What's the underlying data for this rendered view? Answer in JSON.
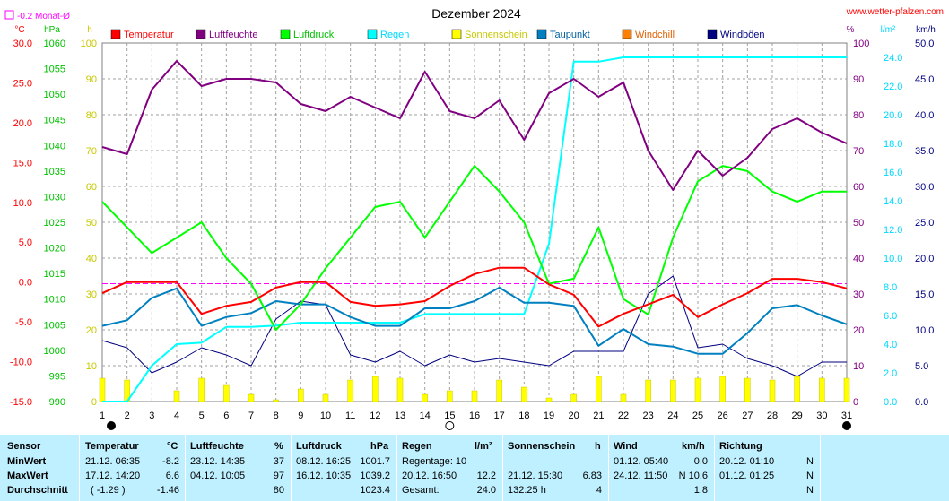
{
  "header": {
    "title": "Dezember 2024",
    "website": "www.wetter-pfalzen.com",
    "monat_label": "-0.2 Monat-Ø",
    "unit_temp": "°C",
    "unit_hpa": "hPa",
    "unit_h": "h",
    "unit_pct": "%",
    "unit_rain": "l/m²",
    "unit_wind": "km/h"
  },
  "colors": {
    "temperatur": "#ff0000",
    "luftfeuchte": "#800080",
    "luftdruck": "#00ff00",
    "regen": "#00ffff",
    "sonnenschein": "#ffff00",
    "taupunkt": "#0080c0",
    "windchill": "#ff8000",
    "windboeen": "#000080"
  },
  "legend": [
    {
      "key": "temperatur",
      "label": "Temperatur",
      "color": "#ff0000",
      "textColor": "#ff0000",
      "x": 124
    },
    {
      "key": "luftfeuchte",
      "label": "Luftfeuchte",
      "color": "#800080",
      "textColor": "#800080",
      "x": 219
    },
    {
      "key": "luftdruck",
      "label": "Luftdruck",
      "color": "#00ff00",
      "textColor": "#00c000",
      "x": 313
    },
    {
      "key": "regen",
      "label": "Regen",
      "color": "#00ffff",
      "textColor": "#00d8ff",
      "x": 410
    },
    {
      "key": "sonnenschein",
      "label": "Sonnenschein",
      "color": "#ffff00",
      "textColor": "#c8c800",
      "x": 504
    },
    {
      "key": "taupunkt",
      "label": "Taupunkt",
      "color": "#0080c0",
      "textColor": "#0060a0",
      "x": 599
    },
    {
      "key": "windchill",
      "label": "Windchill",
      "color": "#ff8000",
      "textColor": "#e06000",
      "x": 694
    },
    {
      "key": "windboeen",
      "label": "Windböen",
      "color": "#000080",
      "textColor": "#000080",
      "x": 789
    }
  ],
  "chart_data": {
    "type": "line",
    "title": "Dezember 2024",
    "x": [
      1,
      2,
      3,
      4,
      5,
      6,
      7,
      8,
      9,
      10,
      11,
      12,
      13,
      14,
      15,
      16,
      17,
      18,
      19,
      20,
      21,
      22,
      23,
      24,
      25,
      26,
      27,
      28,
      29,
      30,
      31
    ],
    "xlim": [
      1,
      31
    ],
    "axes": {
      "temp": {
        "unit": "°C",
        "min": -15,
        "max": 30,
        "ticks": [
          "30.0",
          "25.0",
          "20.0",
          "15.0",
          "10.0",
          "5.0",
          "0.0",
          "-5.0",
          "-10.0",
          "-15.0"
        ]
      },
      "hpa": {
        "unit": "hPa",
        "min": 990,
        "max": 1060,
        "ticks": [
          "1060",
          "1055",
          "1050",
          "1045",
          "1040",
          "1035",
          "1030",
          "1025",
          "1020",
          "1015",
          "1010",
          "1005",
          "1000",
          "995",
          "990"
        ]
      },
      "hours": {
        "unit": "h",
        "min": 0,
        "max": 100,
        "ticks": [
          "100",
          "90",
          "80",
          "70",
          "60",
          "50",
          "40",
          "30",
          "20",
          "10",
          "0"
        ]
      },
      "pct": {
        "unit": "%",
        "min": 0,
        "max": 100,
        "ticks": [
          "100",
          "90",
          "80",
          "70",
          "60",
          "50",
          "40",
          "30",
          "20",
          "10",
          "0"
        ]
      },
      "rain": {
        "unit": "l/m²",
        "min": 0,
        "max": 25,
        "ticks": [
          "24.0",
          "22.0",
          "20.0",
          "18.0",
          "16.0",
          "14.0",
          "12.0",
          "10.0",
          "8.0",
          "6.0",
          "4.0",
          "2.0",
          "0.0"
        ]
      },
      "wind": {
        "unit": "km/h",
        "min": 0,
        "max": 50,
        "ticks": [
          "50.0",
          "45.0",
          "40.0",
          "35.0",
          "30.0",
          "25.0",
          "20.0",
          "15.0",
          "10.0",
          "5.0",
          "0.0"
        ]
      }
    },
    "monthly_mean_temp": -0.2,
    "series": [
      {
        "name": "Temperatur",
        "axis": "temp",
        "color": "#ff0000",
        "values": [
          -1.4,
          0.0,
          0.0,
          0.0,
          -4.0,
          -3.0,
          -2.5,
          -0.7,
          0.0,
          0.0,
          -2.5,
          -3.0,
          -2.8,
          -2.4,
          -0.5,
          1.0,
          1.8,
          1.8,
          -0.3,
          -1.6,
          -5.6,
          -4.0,
          -2.8,
          -1.6,
          -4.4,
          -2.8,
          -1.4,
          0.4,
          0.4,
          0.0,
          -0.8
        ]
      },
      {
        "name": "Luftfeuchte",
        "axis": "pct",
        "color": "#800080",
        "values": [
          71,
          69,
          87,
          95,
          88,
          90,
          90,
          89,
          83,
          81,
          85,
          82,
          79,
          92,
          81,
          79,
          84,
          73,
          86,
          90,
          85,
          89,
          70,
          59,
          70,
          63,
          68,
          76,
          79,
          75,
          72
        ]
      },
      {
        "name": "Luftdruck",
        "axis": "hpa",
        "color": "#00ff00",
        "values": [
          1029,
          1024,
          1019,
          1022,
          1025,
          1018,
          1013,
          1004,
          1009,
          1016,
          1022,
          1028,
          1029,
          1022,
          1029,
          1036,
          1031,
          1025,
          1013,
          1014,
          1024,
          1010,
          1007,
          1022,
          1033,
          1036,
          1035,
          1031,
          1029,
          1031,
          1031
        ]
      },
      {
        "name": "Regen",
        "axis": "rain",
        "color": "#00ffff",
        "values": [
          0.0,
          0.0,
          2.5,
          4.0,
          4.1,
          5.2,
          5.2,
          5.3,
          5.5,
          5.5,
          5.5,
          5.5,
          5.5,
          6.1,
          6.1,
          6.1,
          6.1,
          6.1,
          11.0,
          23.7,
          23.7,
          24.0,
          24.0,
          24.0,
          24.0,
          24.0,
          24.0,
          24.0,
          24.0,
          24.0,
          24.0
        ]
      },
      {
        "name": "Taupunkt",
        "axis": "temp",
        "color": "#0080c0",
        "values": [
          -5.5,
          -4.8,
          -2.0,
          -0.8,
          -5.5,
          -4.4,
          -3.9,
          -2.4,
          -2.8,
          -2.8,
          -4.4,
          -5.5,
          -5.5,
          -3.3,
          -3.3,
          -2.4,
          -0.7,
          -2.6,
          -2.6,
          -3.0,
          -8.0,
          -5.9,
          -7.8,
          -8.1,
          -9.0,
          -9.0,
          -6.4,
          -3.3,
          -2.9,
          -4.2,
          -5.3
        ]
      },
      {
        "name": "Windböen",
        "axis": "wind",
        "color": "#000080",
        "values": [
          8.5,
          7.5,
          4.0,
          5.5,
          7.5,
          6.5,
          5.0,
          11.5,
          14.0,
          13.5,
          6.5,
          5.5,
          7.0,
          5.0,
          6.5,
          5.5,
          6.0,
          5.5,
          5.0,
          7.0,
          7.0,
          7.0,
          15.0,
          17.5,
          7.5,
          8.0,
          6.0,
          5.0,
          3.5,
          5.5,
          5.5
        ]
      },
      {
        "name": "Sonnenschein",
        "axis": "hours",
        "color": "#ffff00",
        "values": [
          6.5,
          6.0,
          0.0,
          3.0,
          6.5,
          4.5,
          2.0,
          0.5,
          3.5,
          2.0,
          6.0,
          7.0,
          6.5,
          2.0,
          3.0,
          3.0,
          6.0,
          4.0,
          1.0,
          2.0,
          7.0,
          2.0,
          6.0,
          6.0,
          6.5,
          7.0,
          6.5,
          6.0,
          7.0,
          6.5,
          6.5
        ]
      }
    ],
    "moon": [
      {
        "day": 1,
        "phase": "new"
      },
      {
        "day": 15,
        "phase": "full"
      },
      {
        "day": 31,
        "phase": "new"
      }
    ]
  },
  "table": {
    "sensor": {
      "head": "Sensor",
      "min": "MinWert",
      "max": "MaxWert",
      "avg": "Durchschnitt"
    },
    "temperatur": {
      "head": "Temperatur",
      "unit": "°C",
      "min_time": "21.12.  06:35",
      "min_val": "-8.2",
      "max_time": "17.12.  14:20",
      "max_val": "6.6",
      "avg_extra": "( -1.29 )",
      "avg_val": "-1.46"
    },
    "luftfeuchte": {
      "head": "Luftfeuchte",
      "unit": "%",
      "min_time": "23.12.  14:35",
      "min_val": "37",
      "max_time": "04.12.  10:05",
      "max_val": "97",
      "avg_val": "80"
    },
    "luftdruck": {
      "head": "Luftdruck",
      "unit": "hPa",
      "min_time": "08.12.  16:25",
      "min_val": "1001.7",
      "max_time": "16.12.  10:35",
      "max_val": "1039.2",
      "avg_val": "1023.4"
    },
    "regen": {
      "head": "Regen",
      "unit": "l/m²",
      "min_text": "Regentage: 10",
      "max_time": "20.12.  16:50",
      "max_val": "12.2",
      "avg_label": "Gesamt:",
      "avg_val": "24.0"
    },
    "sonnenschein": {
      "head": "Sonnenschein",
      "unit": "h",
      "max_time": "21.12.  15:30",
      "max_val": "6.83",
      "avg_extra": "132:25 h",
      "avg_val": "4"
    },
    "wind": {
      "head": "Wind",
      "unit": "km/h",
      "min_time": "01.12.  05:40",
      "min_val": "0.0",
      "max_time": "24.12.  11:50",
      "max_val": "N 10.6",
      "avg_val": "1.8"
    },
    "richtung": {
      "head": "Richtung",
      "min_time": "20.12.  01:10",
      "min_val": "N",
      "max_time": "01.12.  01:25",
      "max_val": "N",
      "avg_val": "N"
    }
  }
}
